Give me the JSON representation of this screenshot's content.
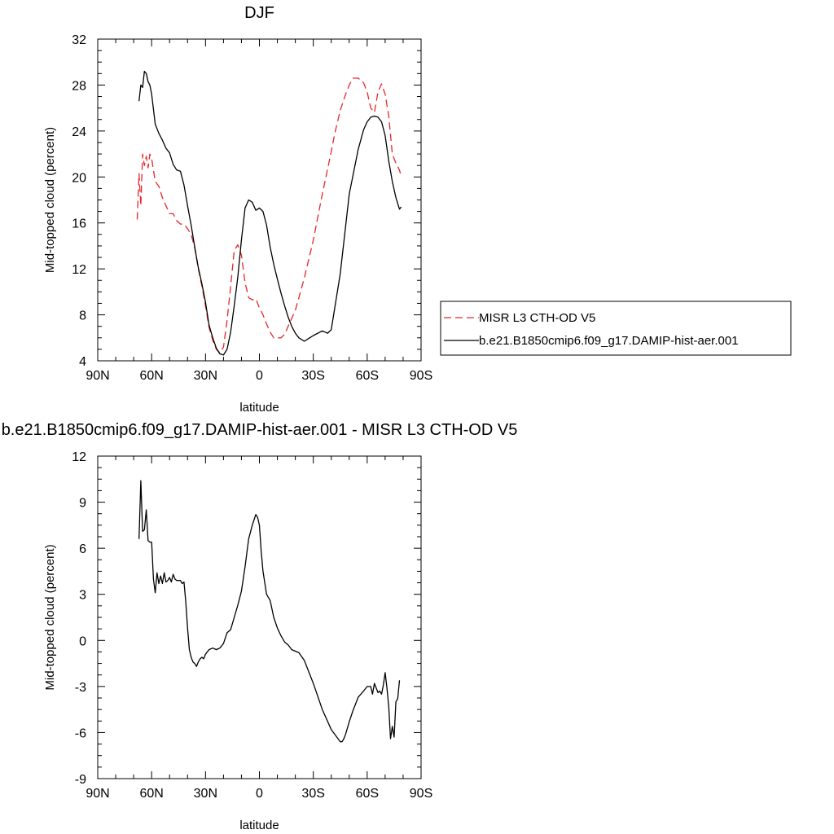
{
  "figure": {
    "title_top": "DJF",
    "title_bottom": "b.e21.B1850cmip6.f09_g17.DAMIP-hist-aer.001 - MISR L3 CTH-OD V5"
  },
  "chart_data": [
    {
      "type": "line",
      "title": "DJF",
      "xlabel": "latitude",
      "ylabel": "Mid-topped cloud (percent)",
      "xlim": [
        90,
        -90
      ],
      "ylim": [
        4,
        32
      ],
      "xticks": [
        90,
        60,
        30,
        0,
        -30,
        -60,
        -90
      ],
      "xtick_labels": [
        "90N",
        "60N",
        "30N",
        "0",
        "30S",
        "60S",
        "90S"
      ],
      "yticks": [
        4,
        8,
        12,
        16,
        20,
        24,
        28,
        32
      ],
      "ytick_labels": [
        "4",
        "8",
        "12",
        "16",
        "20",
        "24",
        "28",
        "32"
      ],
      "legend": "right-outside",
      "series": [
        {
          "name": "MISR L3 CTH-OD V5",
          "color": "#e8262a",
          "dash": "dashed",
          "x": [
            68,
            67,
            66,
            65,
            64,
            63,
            62,
            61,
            60,
            58,
            56,
            54,
            52,
            50,
            48,
            46,
            44,
            42,
            40,
            38,
            36,
            34,
            32,
            30,
            28,
            26,
            24,
            22,
            20,
            18,
            16,
            14,
            12,
            10,
            8,
            6,
            4,
            2,
            0,
            -2,
            -4,
            -6,
            -8,
            -10,
            -12,
            -14,
            -16,
            -18,
            -20,
            -22,
            -25,
            -30,
            -35,
            -40,
            -42,
            -45,
            -48,
            -50,
            -52,
            -55,
            -58,
            -60,
            -62,
            -64,
            -66,
            -68,
            -70,
            -72,
            -74,
            -76,
            -78,
            -79
          ],
          "y": [
            16.3,
            20.3,
            17.5,
            22.0,
            21.0,
            21.8,
            20.8,
            22.0,
            21.6,
            19.6,
            19.2,
            18.2,
            17.5,
            16.8,
            16.8,
            16.2,
            15.9,
            15.9,
            15.5,
            15.0,
            13.8,
            12.0,
            10.5,
            8.8,
            6.9,
            5.8,
            5.0,
            4.7,
            5.2,
            7.5,
            10.5,
            13.6,
            14.1,
            13.2,
            10.8,
            9.5,
            9.3,
            9.4,
            8.6,
            8.0,
            7.2,
            6.5,
            6.0,
            6.0,
            6.0,
            6.3,
            7.0,
            7.7,
            8.4,
            9.5,
            11.2,
            14.5,
            18.5,
            22.2,
            23.8,
            25.8,
            27.2,
            28.0,
            28.6,
            28.6,
            28.2,
            27.4,
            26.0,
            25.6,
            27.4,
            28.1,
            27.2,
            25.3,
            22.0,
            21.2,
            20.6,
            20.0
          ]
        },
        {
          "name": "b.e21.B1850cmip6.f09_g17.DAMIP-hist-aer.001",
          "color": "#000000",
          "dash": "solid",
          "x": [
            67,
            66,
            65,
            64,
            63,
            62,
            61,
            60,
            58,
            56,
            54,
            52,
            50,
            48,
            46,
            44,
            42,
            40,
            38,
            36,
            34,
            32,
            30,
            28,
            26,
            24,
            22,
            20,
            18,
            16,
            14,
            12,
            10,
            8,
            6,
            4,
            2,
            0,
            -2,
            -4,
            -6,
            -8,
            -10,
            -12,
            -14,
            -16,
            -18,
            -20,
            -22,
            -25,
            -30,
            -35,
            -38,
            -40,
            -45,
            -50,
            -55,
            -58,
            -60,
            -62,
            -64,
            -66,
            -68,
            -70,
            -72,
            -74,
            -76,
            -78,
            -79
          ],
          "y": [
            26.6,
            28.0,
            27.8,
            29.2,
            29.0,
            28.3,
            28.0,
            27.2,
            24.6,
            23.8,
            23.2,
            22.5,
            22.1,
            21.1,
            20.6,
            20.5,
            19.3,
            17.5,
            15.8,
            13.9,
            12.1,
            10.7,
            9.1,
            7.1,
            6.0,
            5.1,
            4.6,
            4.5,
            5.0,
            6.5,
            8.8,
            11.3,
            14.5,
            17.3,
            18.0,
            17.8,
            17.1,
            17.3,
            17.0,
            15.8,
            13.9,
            12.4,
            11.1,
            9.9,
            8.8,
            7.8,
            7.0,
            6.4,
            6.0,
            5.7,
            6.2,
            6.6,
            6.4,
            6.7,
            11.6,
            18.5,
            22.4,
            24.1,
            24.8,
            25.2,
            25.3,
            25.2,
            24.8,
            23.6,
            21.4,
            19.6,
            18.2,
            17.2,
            17.4
          ]
        }
      ]
    },
    {
      "type": "line",
      "title": "b.e21.B1850cmip6.f09_g17.DAMIP-hist-aer.001 - MISR L3 CTH-OD V5",
      "xlabel": "latitude",
      "ylabel": "Mid-topped cloud (percent)",
      "xlim": [
        90,
        -90
      ],
      "ylim": [
        -9,
        12
      ],
      "xticks": [
        90,
        60,
        30,
        0,
        -30,
        -60,
        -90
      ],
      "xtick_labels": [
        "90N",
        "60N",
        "30N",
        "0",
        "30S",
        "60S",
        "90S"
      ],
      "yticks": [
        -9,
        -6,
        -3,
        0,
        3,
        6,
        9,
        12
      ],
      "ytick_labels": [
        "-9",
        "-6",
        "-3",
        "0",
        "3",
        "6",
        "9",
        "12"
      ],
      "series": [
        {
          "color": "#000000",
          "dash": "solid",
          "x": [
            67,
            66,
            65,
            64,
            63,
            62,
            61,
            60,
            59,
            58,
            57,
            56,
            55,
            54,
            53,
            52,
            51,
            50,
            49,
            48,
            47,
            46,
            45,
            44,
            43,
            42,
            41,
            40,
            39,
            38,
            37,
            36,
            35,
            34,
            33,
            32,
            31,
            30,
            28,
            26,
            24,
            22,
            20,
            18,
            16,
            14,
            12,
            10,
            8,
            6,
            4,
            2,
            1,
            0,
            -1,
            -2,
            -4,
            -6,
            -8,
            -10,
            -12,
            -14,
            -16,
            -18,
            -20,
            -22,
            -25,
            -30,
            -35,
            -40,
            -45,
            -46,
            -47,
            -48,
            -50,
            -52,
            -55,
            -58,
            -60,
            -62,
            -63,
            -64,
            -65,
            -66,
            -67,
            -68,
            -69,
            -70,
            -71,
            -72,
            -73,
            -74,
            -75,
            -76,
            -77,
            -78
          ],
          "y": [
            6.6,
            10.4,
            7.1,
            7.2,
            8.5,
            6.5,
            6.4,
            6.4,
            4.0,
            3.1,
            4.4,
            3.7,
            4.2,
            3.7,
            4.4,
            3.8,
            3.9,
            4.1,
            3.8,
            4.3,
            4.0,
            3.9,
            3.9,
            3.9,
            3.7,
            3.8,
            2.5,
            0.8,
            -0.6,
            -1.1,
            -1.4,
            -1.5,
            -1.7,
            -1.4,
            -1.2,
            -1.1,
            -1.2,
            -0.9,
            -0.6,
            -0.5,
            -0.6,
            -0.5,
            -0.2,
            0.5,
            0.7,
            1.5,
            2.3,
            3.2,
            4.8,
            6.6,
            7.5,
            8.2,
            8.0,
            7.5,
            5.8,
            4.5,
            3.0,
            2.6,
            1.5,
            0.8,
            0.3,
            -0.1,
            -0.3,
            -0.6,
            -0.7,
            -0.8,
            -1.3,
            -2.8,
            -4.5,
            -5.8,
            -6.6,
            -6.6,
            -6.4,
            -6.1,
            -5.3,
            -4.6,
            -3.7,
            -3.3,
            -3.0,
            -3.0,
            -3.5,
            -2.8,
            -3.1,
            -3.4,
            -3.3,
            -3.5,
            -2.9,
            -2.1,
            -3.1,
            -4.3,
            -6.4,
            -5.6,
            -6.3,
            -4.0,
            -3.8,
            -2.6
          ]
        }
      ]
    }
  ]
}
